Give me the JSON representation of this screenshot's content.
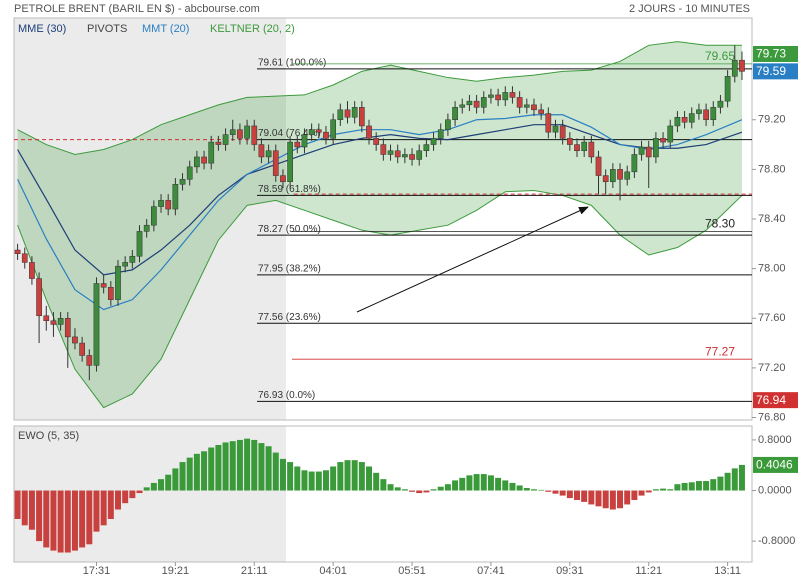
{
  "chart_data": [
    {
      "type": "candlestick",
      "title": "PETROLE BRENT (BARIL EN $) - abcbourse.com",
      "subtitle": "2 JOURS - 10 MINUTES",
      "xlim": [
        -0.5,
        102.4
      ],
      "ylim": [
        76.78,
        80.02
      ],
      "yticks": [
        {
          "value": 79.2,
          "label": "79.20"
        },
        {
          "value": 78.8,
          "label": "78.80"
        },
        {
          "value": 78.4,
          "label": "78.40"
        },
        {
          "value": 78.0,
          "label": "78.00"
        },
        {
          "value": 77.6,
          "label": "77.60"
        },
        {
          "value": 77.2,
          "label": "77.20"
        },
        {
          "value": 76.8,
          "label": "76.80"
        }
      ],
      "up_color": "#3d8b3d",
      "down_color": "#c8413f",
      "candles": [
        [
          78.15,
          78.2,
          78.07,
          78.12
        ],
        [
          78.12,
          78.17,
          78.0,
          78.05
        ],
        [
          78.05,
          78.1,
          77.87,
          77.92
        ],
        [
          77.92,
          77.97,
          77.4,
          77.62
        ],
        [
          77.62,
          77.7,
          77.5,
          77.58
        ],
        [
          77.58,
          77.65,
          77.45,
          77.55
        ],
        [
          77.55,
          77.65,
          77.5,
          77.6
        ],
        [
          77.6,
          77.65,
          77.2,
          77.45
        ],
        [
          77.45,
          77.52,
          77.35,
          77.4
        ],
        [
          77.4,
          77.45,
          77.25,
          77.3
        ],
        [
          77.3,
          77.35,
          77.1,
          77.22
        ],
        [
          77.22,
          77.93,
          77.17,
          77.88
        ],
        [
          77.88,
          77.95,
          77.8,
          77.85
        ],
        [
          77.85,
          77.9,
          77.7,
          77.75
        ],
        [
          77.75,
          78.07,
          77.7,
          78.02
        ],
        [
          78.02,
          78.1,
          77.97,
          78.05
        ],
        [
          78.05,
          78.15,
          78.0,
          78.1
        ],
        [
          78.1,
          78.35,
          78.05,
          78.3
        ],
        [
          78.3,
          78.4,
          78.25,
          78.35
        ],
        [
          78.35,
          78.55,
          78.3,
          78.5
        ],
        [
          78.5,
          78.6,
          78.45,
          78.55
        ],
        [
          78.55,
          78.6,
          78.43,
          78.48
        ],
        [
          78.48,
          78.73,
          78.43,
          78.68
        ],
        [
          78.68,
          78.77,
          78.63,
          78.72
        ],
        [
          78.72,
          78.87,
          78.67,
          78.82
        ],
        [
          78.82,
          78.95,
          78.77,
          78.9
        ],
        [
          78.9,
          78.95,
          78.8,
          78.85
        ],
        [
          78.85,
          79.07,
          78.8,
          79.02
        ],
        [
          79.02,
          79.07,
          78.95,
          79.0
        ],
        [
          79.0,
          79.13,
          78.95,
          79.08
        ],
        [
          79.08,
          79.2,
          79.03,
          79.12
        ],
        [
          79.12,
          79.17,
          79.0,
          79.05
        ],
        [
          79.05,
          79.2,
          79.0,
          79.15
        ],
        [
          79.15,
          79.2,
          78.95,
          79.0
        ],
        [
          79.0,
          79.05,
          78.85,
          78.9
        ],
        [
          78.9,
          79.0,
          78.85,
          78.95
        ],
        [
          78.95,
          79.0,
          78.7,
          78.75
        ],
        [
          78.75,
          78.8,
          78.65,
          78.7
        ],
        [
          78.7,
          79.07,
          78.65,
          79.02
        ],
        [
          79.02,
          79.07,
          78.93,
          78.98
        ],
        [
          78.98,
          79.13,
          78.93,
          79.08
        ],
        [
          79.08,
          79.17,
          79.03,
          79.12
        ],
        [
          79.12,
          79.17,
          79.05,
          79.1
        ],
        [
          79.1,
          79.15,
          79.0,
          79.05
        ],
        [
          79.05,
          79.25,
          79.0,
          79.2
        ],
        [
          79.2,
          79.33,
          79.15,
          79.28
        ],
        [
          79.28,
          79.35,
          79.17,
          79.22
        ],
        [
          79.22,
          79.35,
          79.17,
          79.3
        ],
        [
          79.3,
          79.35,
          79.1,
          79.15
        ],
        [
          79.15,
          79.2,
          79.0,
          79.05
        ],
        [
          79.05,
          79.1,
          78.95,
          79.0
        ],
        [
          79.0,
          79.05,
          78.87,
          78.92
        ],
        [
          78.92,
          79.0,
          78.87,
          78.95
        ],
        [
          78.95,
          79.0,
          78.85,
          78.9
        ],
        [
          78.9,
          78.97,
          78.85,
          78.92
        ],
        [
          78.92,
          78.97,
          78.83,
          78.88
        ],
        [
          78.88,
          79.0,
          78.83,
          78.95
        ],
        [
          78.95,
          79.05,
          78.9,
          79.0
        ],
        [
          79.0,
          79.1,
          78.95,
          79.05
        ],
        [
          79.05,
          79.17,
          79.0,
          79.12
        ],
        [
          79.12,
          79.25,
          79.07,
          79.2
        ],
        [
          79.2,
          79.35,
          79.15,
          79.3
        ],
        [
          79.3,
          79.37,
          79.25,
          79.32
        ],
        [
          79.32,
          79.4,
          79.27,
          79.35
        ],
        [
          79.35,
          79.4,
          79.25,
          79.3
        ],
        [
          79.3,
          79.43,
          79.25,
          79.38
        ],
        [
          79.38,
          79.45,
          79.33,
          79.4
        ],
        [
          79.4,
          79.45,
          79.31,
          79.36
        ],
        [
          79.36,
          79.47,
          79.31,
          79.42
        ],
        [
          79.42,
          79.47,
          79.33,
          79.38
        ],
        [
          79.38,
          79.43,
          79.25,
          79.3
        ],
        [
          79.3,
          79.37,
          79.25,
          79.32
        ],
        [
          79.32,
          79.37,
          79.23,
          79.28
        ],
        [
          79.28,
          79.33,
          79.2,
          79.25
        ],
        [
          79.25,
          79.3,
          79.05,
          79.1
        ],
        [
          79.1,
          79.2,
          79.05,
          79.15
        ],
        [
          79.15,
          79.2,
          79.0,
          79.05
        ],
        [
          79.05,
          79.1,
          78.95,
          79.0
        ],
        [
          79.0,
          79.05,
          78.9,
          78.95
        ],
        [
          78.95,
          79.07,
          78.9,
          79.02
        ],
        [
          79.02,
          79.07,
          78.85,
          78.9
        ],
        [
          78.9,
          78.95,
          78.6,
          78.75
        ],
        [
          78.75,
          78.8,
          78.6,
          78.7
        ],
        [
          78.7,
          78.85,
          78.65,
          78.8
        ],
        [
          78.8,
          78.85,
          78.55,
          78.72
        ],
        [
          78.72,
          78.83,
          78.67,
          78.78
        ],
        [
          78.78,
          78.97,
          78.73,
          78.92
        ],
        [
          78.92,
          79.03,
          78.87,
          78.98
        ],
        [
          78.98,
          79.03,
          78.65,
          78.9
        ],
        [
          78.9,
          79.1,
          78.85,
          79.05
        ],
        [
          79.05,
          79.1,
          78.97,
          79.02
        ],
        [
          79.02,
          79.2,
          78.97,
          79.15
        ],
        [
          79.15,
          79.27,
          79.1,
          79.22
        ],
        [
          79.22,
          79.27,
          79.13,
          79.18
        ],
        [
          79.18,
          79.3,
          79.13,
          79.25
        ],
        [
          79.25,
          79.33,
          79.2,
          79.28
        ],
        [
          79.28,
          79.33,
          79.15,
          79.2
        ],
        [
          79.2,
          79.35,
          79.15,
          79.3
        ],
        [
          79.3,
          79.4,
          79.25,
          79.35
        ],
        [
          79.35,
          79.6,
          79.3,
          79.55
        ],
        [
          79.55,
          79.8,
          79.5,
          79.68
        ],
        [
          79.68,
          79.75,
          79.52,
          79.59
        ]
      ],
      "line_x": [
        0,
        4,
        8,
        12,
        16,
        20,
        24,
        28,
        32,
        36,
        40,
        44,
        48,
        52,
        56,
        60,
        64,
        68,
        72,
        76,
        80,
        84,
        88,
        92,
        96,
        101
      ],
      "series": [
        {
          "name": "MME (30)",
          "color": "#1d3e78",
          "values": [
            78.96,
            78.56,
            78.15,
            77.95,
            77.99,
            78.15,
            78.35,
            78.59,
            78.76,
            78.84,
            78.92,
            79.0,
            79.05,
            79.08,
            79.05,
            79.04,
            79.08,
            79.12,
            79.16,
            79.16,
            79.08,
            79.0,
            78.97,
            78.97,
            79.0,
            79.1
          ]
        },
        {
          "name": "MMT (20)",
          "color": "#2a7fc4",
          "values": [
            78.72,
            78.24,
            77.83,
            77.67,
            77.75,
            77.99,
            78.27,
            78.55,
            78.76,
            78.88,
            79.0,
            79.08,
            79.12,
            79.12,
            79.08,
            79.12,
            79.2,
            79.21,
            79.24,
            79.24,
            79.14,
            79.0,
            78.96,
            79.0,
            79.08,
            79.2
          ]
        }
      ],
      "keltner": {
        "name": "KELTNER (20, 2)",
        "color": "#3c9a3c",
        "upper": [
          79.12,
          79.0,
          78.92,
          78.96,
          79.04,
          79.16,
          79.24,
          79.32,
          79.38,
          79.39,
          79.4,
          79.48,
          79.59,
          79.64,
          79.59,
          79.54,
          79.51,
          79.54,
          79.56,
          79.59,
          79.6,
          79.67,
          79.8,
          79.83,
          79.8,
          79.8
        ],
        "lower": [
          78.35,
          77.75,
          77.19,
          76.88,
          76.99,
          77.27,
          77.75,
          78.23,
          78.51,
          78.55,
          78.47,
          78.39,
          78.31,
          78.27,
          78.31,
          78.35,
          78.47,
          78.62,
          78.63,
          78.59,
          78.51,
          78.27,
          78.11,
          78.17,
          78.31,
          78.59
        ]
      },
      "pivots": {
        "name": "PIVOTS",
        "levels": [
          {
            "value": 79.65,
            "label": "79.65",
            "color": "#3c9a3c"
          },
          {
            "value": 78.3,
            "label": "78.30",
            "color": "#222222"
          },
          {
            "value": 77.27,
            "label": "77.27",
            "color": "#d03030"
          }
        ]
      },
      "dashed_levels": [
        {
          "value": 79.04,
          "from": -0.5,
          "to": 33.4
        },
        {
          "value": 78.6,
          "from": 38.5,
          "to": 102.4
        }
      ],
      "fib_levels": [
        {
          "value": 79.61,
          "label": "79.61 (100.0%)"
        },
        {
          "value": 79.04,
          "label": "79.04 (76.4%)"
        },
        {
          "value": 78.59,
          "label": "78.59 (61.8%)"
        },
        {
          "value": 78.27,
          "label": "78.27 (50.0%)"
        },
        {
          "value": 77.95,
          "label": "77.95 (38.2%)"
        },
        {
          "value": 77.56,
          "label": "77.56 (23.6%)"
        },
        {
          "value": 76.93,
          "label": "76.93 (0.0%)"
        }
      ],
      "price_tags": [
        {
          "value": 79.73,
          "color": "#3c9a3c"
        },
        {
          "value": 79.59,
          "color": "#2a7fc4"
        },
        {
          "value": 76.94,
          "color": "#d03030"
        }
      ]
    },
    {
      "type": "bar",
      "title": "EWO (5, 35)",
      "xlim": [
        -0.5,
        102.4
      ],
      "ylim": [
        -1.13,
        1.02
      ],
      "yticks": [
        {
          "value": 0.8,
          "label": "0.8000"
        },
        {
          "value": 0,
          "label": "0.0000"
        },
        {
          "value": -0.8,
          "label": "-0.8000"
        }
      ],
      "xticks": [
        {
          "value": 11,
          "label": "17:31"
        },
        {
          "value": 22,
          "label": "19:21"
        },
        {
          "value": 33,
          "label": "21:11"
        },
        {
          "value": 44,
          "label": "04:01"
        },
        {
          "value": 55,
          "label": "05:51"
        },
        {
          "value": 66,
          "label": "07:41"
        },
        {
          "value": 77,
          "label": "09:31"
        },
        {
          "value": 88,
          "label": "11:21"
        },
        {
          "value": 99,
          "label": "13:11"
        }
      ],
      "positive_color": "#3a9a3a",
      "negative_color": "#c8413f",
      "values": [
        -0.45,
        -0.55,
        -0.62,
        -0.8,
        -0.9,
        -0.95,
        -0.98,
        -0.98,
        -0.95,
        -0.9,
        -0.85,
        -0.65,
        -0.55,
        -0.45,
        -0.3,
        -0.2,
        -0.12,
        -0.04,
        0.05,
        0.12,
        0.18,
        0.25,
        0.35,
        0.45,
        0.52,
        0.58,
        0.62,
        0.68,
        0.72,
        0.76,
        0.78,
        0.8,
        0.82,
        0.8,
        0.75,
        0.7,
        0.6,
        0.5,
        0.45,
        0.38,
        0.32,
        0.3,
        0.3,
        0.32,
        0.38,
        0.45,
        0.48,
        0.48,
        0.45,
        0.38,
        0.28,
        0.18,
        0.1,
        0.05,
        0.02,
        -0.02,
        -0.04,
        -0.03,
        0.02,
        0.06,
        0.1,
        0.16,
        0.2,
        0.24,
        0.26,
        0.26,
        0.24,
        0.2,
        0.16,
        0.12,
        0.08,
        0.04,
        0.02,
        0.01,
        -0.02,
        -0.05,
        -0.08,
        -0.12,
        -0.15,
        -0.18,
        -0.22,
        -0.25,
        -0.28,
        -0.3,
        -0.28,
        -0.22,
        -0.15,
        -0.08,
        -0.03,
        0.02,
        0.03,
        0.02,
        0.1,
        0.12,
        0.13,
        0.15,
        0.15,
        0.18,
        0.22,
        0.28,
        0.35,
        0.4046
      ],
      "value_tag": {
        "value": 0.4046,
        "color": "#3a9a3a"
      }
    }
  ]
}
